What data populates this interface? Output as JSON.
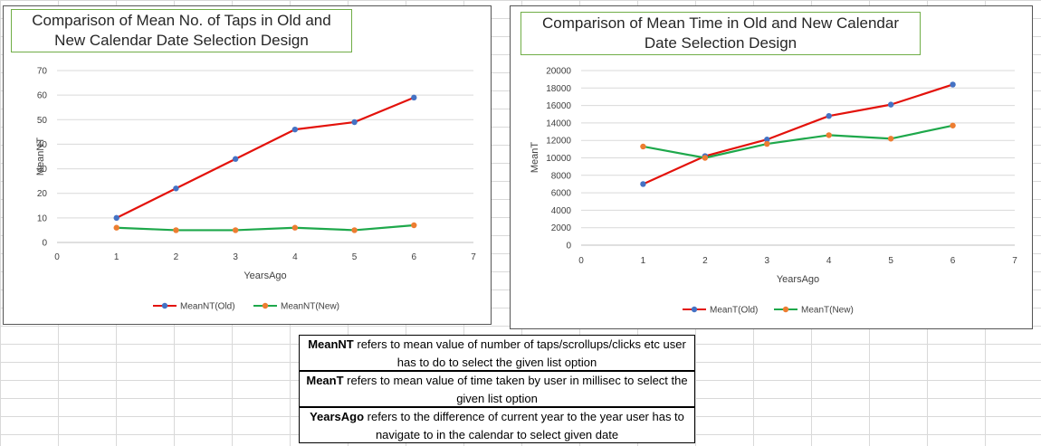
{
  "chart_data": [
    {
      "type": "line",
      "title": "Comparison of Mean No. of Taps in Old and New Calendar Date Selection Design",
      "xlabel": "YearsAgo",
      "ylabel": "MeanNT",
      "xlim": [
        0,
        7
      ],
      "ylim": [
        0,
        70
      ],
      "x_ticks": [
        "0",
        "1",
        "2",
        "3",
        "4",
        "5",
        "6",
        "7"
      ],
      "y_ticks": [
        "0",
        "10",
        "20",
        "30",
        "40",
        "50",
        "60",
        "70"
      ],
      "grid": true,
      "legend": "bottom",
      "x": [
        1,
        2,
        3,
        4,
        5,
        6
      ],
      "series": [
        {
          "name": "MeanNT(Old)",
          "line_color": "#e3120b",
          "marker_color": "#4472c4",
          "values": [
            10,
            22,
            34,
            46,
            49,
            59
          ]
        },
        {
          "name": "MeanNT(New)",
          "line_color": "#1ea84b",
          "marker_color": "#ed7d31",
          "values": [
            6,
            5,
            5,
            6,
            5,
            7
          ]
        }
      ]
    },
    {
      "type": "line",
      "title": "Comparison of Mean Time in Old and New Calendar Date Selection Design",
      "xlabel": "YearsAgo",
      "ylabel": "MeanT",
      "xlim": [
        0,
        7
      ],
      "ylim": [
        0,
        20000
      ],
      "x_ticks": [
        "0",
        "1",
        "2",
        "3",
        "4",
        "5",
        "6",
        "7"
      ],
      "y_ticks": [
        "0",
        "2000",
        "4000",
        "6000",
        "8000",
        "10000",
        "12000",
        "14000",
        "16000",
        "18000",
        "20000"
      ],
      "grid": true,
      "legend": "bottom",
      "x": [
        1,
        2,
        3,
        4,
        5,
        6
      ],
      "series": [
        {
          "name": "MeanT(Old)",
          "line_color": "#e3120b",
          "marker_color": "#4472c4",
          "values": [
            7000,
            10200,
            12100,
            14800,
            16100,
            18400
          ]
        },
        {
          "name": "MeanT(New)",
          "line_color": "#1ea84b",
          "marker_color": "#ed7d31",
          "values": [
            11300,
            10000,
            11600,
            12600,
            12200,
            13700
          ]
        }
      ]
    }
  ],
  "notes": [
    {
      "term": "MeanNT",
      "text": " refers to mean value of number of taps/scrollups/clicks etc user has to do to select the given list option"
    },
    {
      "term": "MeanT",
      "text": " refers to mean value of time taken  by user  in millisec to select the given list option"
    },
    {
      "term": "YearsAgo",
      "text": "  refers to the difference of current year to the year user has to navigate to in the calendar to select given date"
    }
  ]
}
